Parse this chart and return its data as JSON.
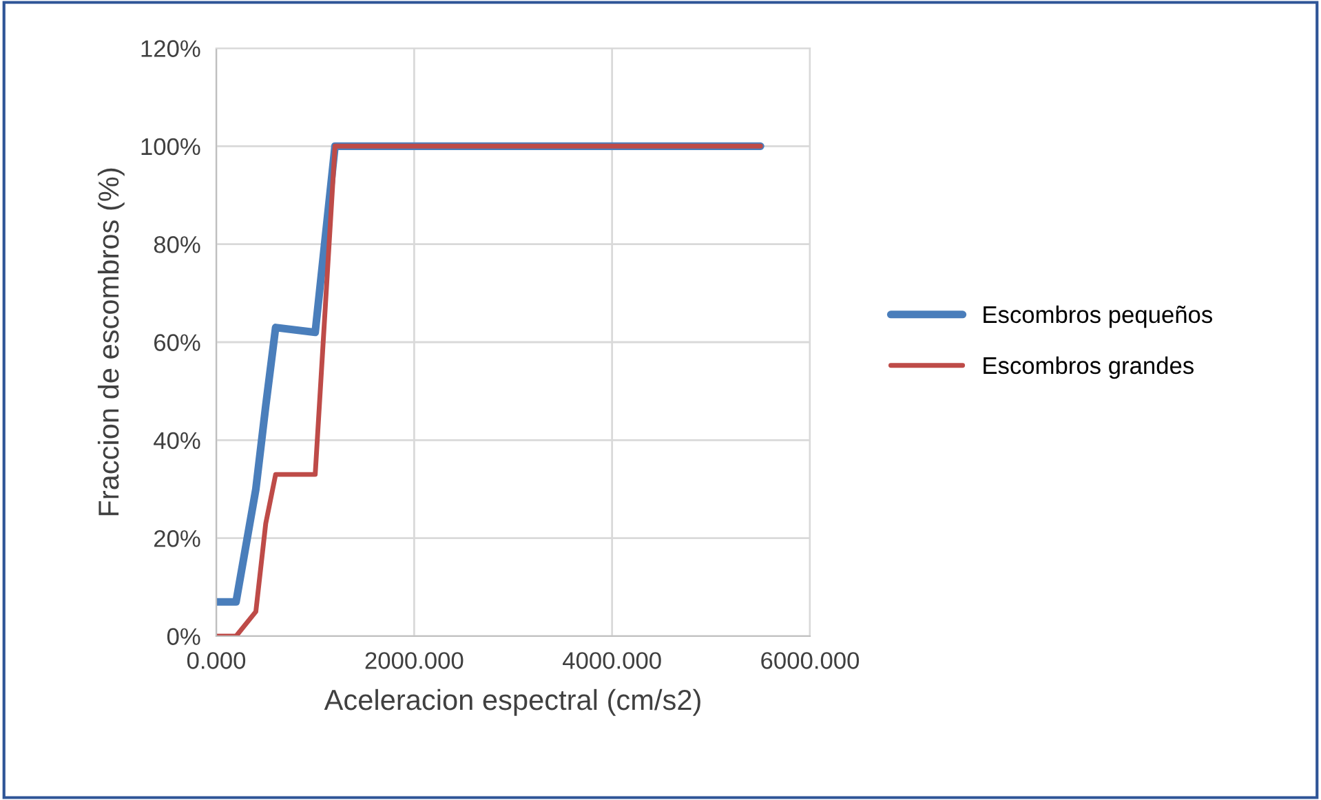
{
  "chart_data": {
    "type": "line",
    "xlabel": "Aceleracion espectral (cm/s2)",
    "ylabel": "Fraccion de escombros (%)",
    "x": [
      0,
      200,
      400,
      500,
      600,
      1000,
      1200,
      1400,
      5500
    ],
    "series": [
      {
        "name": "Escombros pequeños",
        "color": "#4a7ebb",
        "values": [
          7,
          7,
          30,
          47,
          63,
          62,
          100,
          100,
          100
        ]
      },
      {
        "name": "Escombros grandes",
        "color": "#be4b48",
        "values": [
          0,
          0,
          5,
          23,
          33,
          33,
          100,
          100,
          100
        ]
      }
    ],
    "xlim": [
      0,
      6000
    ],
    "ylim": [
      0,
      120
    ],
    "xticks": [
      {
        "value": 0,
        "label": "0.000"
      },
      {
        "value": 2000,
        "label": "2000.000"
      },
      {
        "value": 4000,
        "label": "4000.000"
      },
      {
        "value": 6000,
        "label": "6000.000"
      }
    ],
    "yticks": [
      {
        "value": 0,
        "label": "0%"
      },
      {
        "value": 20,
        "label": "20%"
      },
      {
        "value": 40,
        "label": "40%"
      },
      {
        "value": 60,
        "label": "60%"
      },
      {
        "value": 80,
        "label": "80%"
      },
      {
        "value": 100,
        "label": "100%"
      },
      {
        "value": 120,
        "label": "120%"
      }
    ],
    "grid": true,
    "legend": "right",
    "marker": "none",
    "line_style": "solid"
  }
}
